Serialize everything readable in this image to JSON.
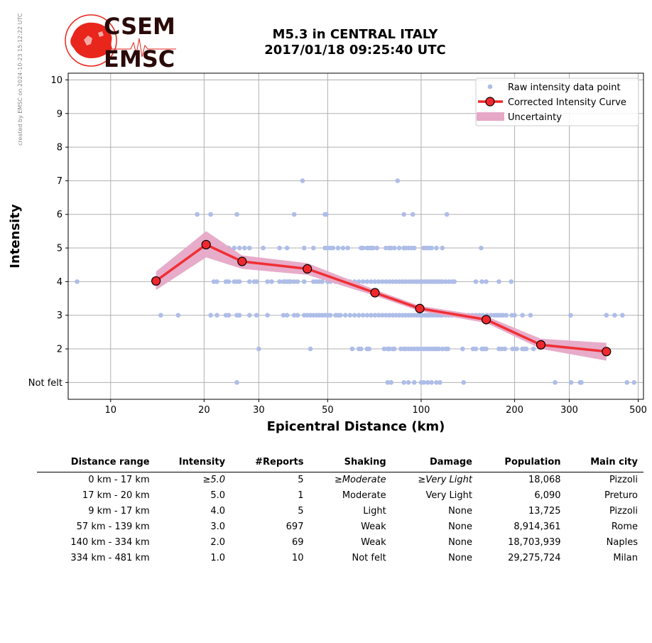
{
  "credit": "created by EMSC on 2024-10-23 15:12:22 UTC",
  "logo": {
    "line1": "CSEM",
    "line2": "EMSC"
  },
  "title": {
    "line1": "M5.3 in CENTRAL ITALY",
    "line2": "2017/01/18 09:25:40 UTC"
  },
  "colors": {
    "raw": "#aebde8",
    "curve": "#f0282d",
    "marker_fill": "#f0282d",
    "uncertainty": "#e6a8c6",
    "logo_red": "#e8261c",
    "logo_dark": "#2a0a08"
  },
  "chart_data": {
    "type": "scatter",
    "xlabel": "Epicentral Distance (km)",
    "ylabel": "Intensity",
    "xscale": "log",
    "xlim": [
      7.3,
      520
    ],
    "ylim": [
      0.5,
      10.2
    ],
    "xticks": [
      10,
      20,
      30,
      50,
      100,
      200,
      300,
      500
    ],
    "yticks": [
      1,
      2,
      3,
      4,
      5,
      6,
      7,
      8,
      9,
      10
    ],
    "ytick_labels": [
      "Not felt",
      "2",
      "3",
      "4",
      "5",
      "6",
      "7",
      "8",
      "9",
      "10"
    ],
    "grid": true,
    "legend_position": "top-right",
    "legend": [
      "Raw intensity data point",
      "Corrected Intensity Curve",
      "Uncertainty"
    ],
    "curve": {
      "x": [
        14,
        20.3,
        26.5,
        43,
        71,
        99,
        162,
        243,
        395
      ],
      "y": [
        4.02,
        5.1,
        4.6,
        4.38,
        3.67,
        3.2,
        2.87,
        2.12,
        1.92
      ]
    },
    "uncertainty": {
      "x": [
        14,
        20.3,
        26.5,
        43,
        71,
        99,
        162,
        243,
        395
      ],
      "lower": [
        3.75,
        4.72,
        4.38,
        4.2,
        3.58,
        3.12,
        2.77,
        2.0,
        1.65
      ],
      "upper": [
        4.3,
        5.5,
        4.78,
        4.55,
        3.76,
        3.28,
        2.97,
        2.3,
        2.18
      ]
    },
    "raw_points": [
      {
        "y": 1,
        "x": [
          25.5,
          78,
          80,
          88,
          91,
          95,
          100,
          102,
          105,
          108,
          112,
          115,
          137,
          270,
          304,
          325,
          328,
          460,
          485
        ]
      },
      {
        "y": 2,
        "x": [
          30,
          44,
          60,
          63,
          64,
          67,
          68,
          76,
          78,
          79,
          81,
          82,
          86,
          88,
          89,
          91,
          93,
          95,
          97,
          98,
          100,
          102,
          104,
          106,
          108,
          110,
          112,
          114,
          117,
          120,
          122,
          136,
          147,
          150,
          157,
          159,
          162,
          178,
          182,
          186,
          197,
          203,
          212,
          215,
          218,
          230
        ]
      },
      {
        "y": 3,
        "x": [
          14.5,
          16.5,
          21,
          22,
          23.5,
          24,
          25.5,
          26,
          28,
          29.5,
          32,
          36,
          37,
          39,
          40,
          42,
          43,
          44,
          45,
          46,
          47,
          48,
          49,
          50,
          51,
          53,
          54,
          55,
          57,
          59,
          61,
          63,
          65,
          67,
          69,
          71,
          73,
          75,
          77,
          79,
          81,
          83,
          85,
          87,
          89,
          91,
          93,
          95,
          97,
          99,
          101,
          103,
          105,
          107,
          109,
          111,
          113,
          115,
          117,
          120,
          123,
          126,
          130,
          134,
          138,
          142,
          146,
          150,
          154,
          158,
          163,
          168,
          172,
          175,
          178,
          181,
          184,
          188,
          196,
          200,
          212,
          225,
          303,
          395,
          420,
          445
        ]
      },
      {
        "y": 4,
        "x": [
          7.8,
          14,
          21.5,
          22,
          23.5,
          24,
          25,
          25.5,
          26,
          28,
          29,
          29.5,
          32,
          33,
          35,
          36,
          36.5,
          37,
          37.5,
          38,
          39,
          40,
          42,
          45,
          46,
          47,
          48,
          50,
          51,
          53,
          55,
          57,
          59,
          61,
          63,
          65,
          67,
          69,
          71,
          73,
          75,
          77,
          79,
          81,
          83,
          85,
          87,
          89,
          91,
          93,
          95,
          97,
          99,
          101,
          103,
          105,
          107,
          109,
          111,
          113,
          115,
          117,
          120,
          123,
          126,
          128,
          150,
          157,
          162,
          178,
          195
        ]
      },
      {
        "y": 5,
        "x": [
          20.5,
          22,
          23,
          24,
          25,
          26,
          27,
          28,
          31,
          35,
          37,
          42,
          45,
          49,
          50,
          51,
          52,
          54,
          56,
          58,
          64,
          65,
          67,
          68,
          69,
          70,
          72,
          77,
          79,
          80,
          82,
          85,
          88,
          89,
          91,
          93,
          95,
          102,
          104,
          106,
          108,
          112,
          117,
          156
        ]
      },
      {
        "y": 6,
        "x": [
          19,
          21,
          25.5,
          39,
          49,
          49.5,
          88,
          94,
          121
        ]
      },
      {
        "y": 7,
        "x": [
          41.5,
          84
        ]
      }
    ]
  },
  "table": {
    "headers": [
      "Distance range",
      "Intensity",
      "#Reports",
      "Shaking",
      "Damage",
      "Population",
      "Main city"
    ],
    "rows": [
      [
        "0 km -   17 km",
        "≥5.0",
        "5",
        "≥Moderate",
        "≥Very Light",
        "18,068",
        "Pizzoli"
      ],
      [
        "17 km -   20 km",
        "5.0",
        "1",
        "Moderate",
        "Very Light",
        "6,090",
        "Preturo"
      ],
      [
        "9 km -   17 km",
        "4.0",
        "5",
        "Light",
        "None",
        "13,725",
        "Pizzoli"
      ],
      [
        "57 km -  139 km",
        "3.0",
        "697",
        "Weak",
        "None",
        "8,914,361",
        "Rome"
      ],
      [
        "140 km -  334 km",
        "2.0",
        "69",
        "Weak",
        "None",
        "18,703,939",
        "Naples"
      ],
      [
        "334 km -  481 km",
        "1.0",
        "10",
        "Not felt",
        "None",
        "29,275,724",
        "Milan"
      ]
    ]
  }
}
